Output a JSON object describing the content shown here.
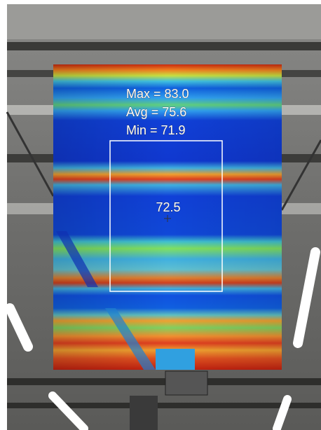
{
  "overlay": {
    "stats": [
      "Max = 83.0",
      "Avg = 75.6",
      "Min = 71.9"
    ],
    "spot": "72.5"
  }
}
